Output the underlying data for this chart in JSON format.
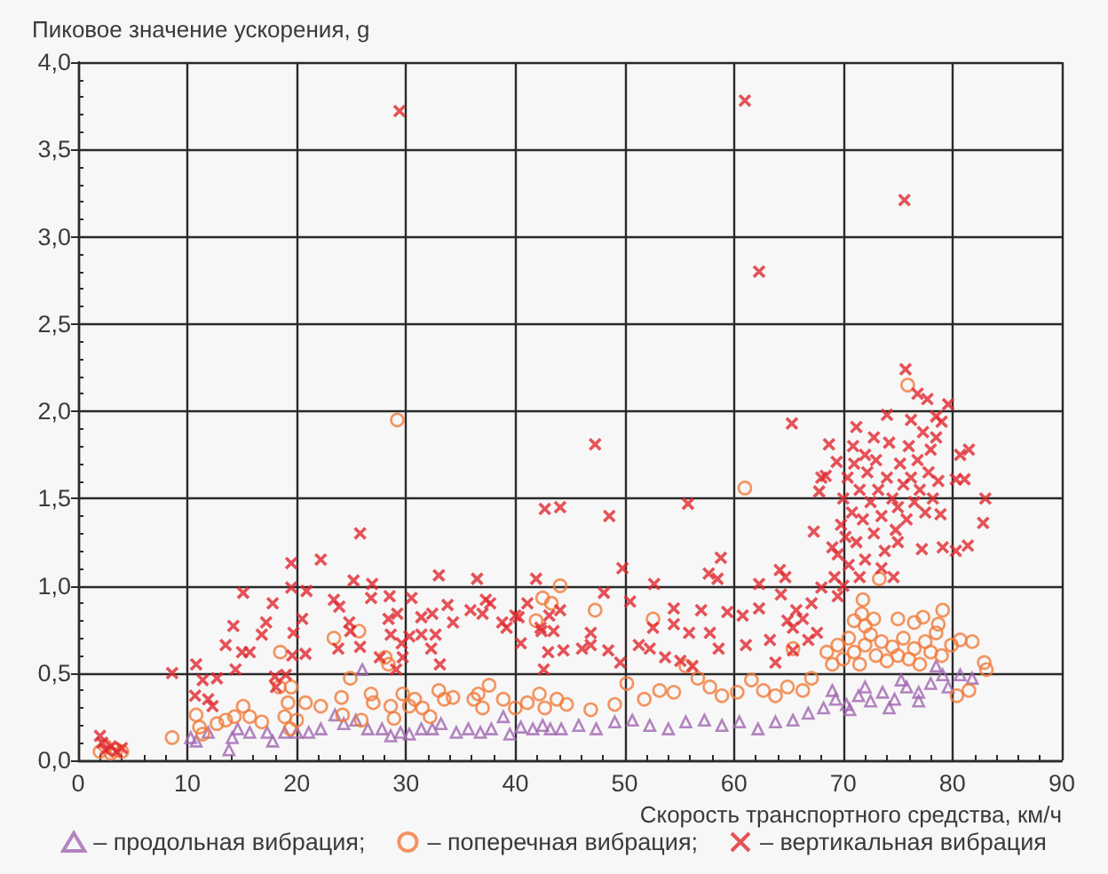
{
  "chart_data": {
    "type": "scatter",
    "xlabel": "Скорость транспортного средства, км/ч",
    "ylabel": "Пиковое значение ускорения, g",
    "xlim": [
      0,
      90
    ],
    "xticks": [
      0,
      {
        "value": 2,
        "label": null
      },
      {
        "value": 4,
        "label": null
      },
      {
        "value": 6,
        "label": null
      },
      {
        "value": 8,
        "label": null
      },
      10,
      {
        "value": 12,
        "label": null
      },
      {
        "value": 14,
        "label": null
      },
      {
        "value": 16,
        "label": null
      },
      {
        "value": 18,
        "label": null
      },
      20,
      {
        "value": 22,
        "label": null
      },
      {
        "value": 24,
        "label": null
      },
      {
        "value": 26,
        "label": null
      },
      {
        "value": 28,
        "label": null
      },
      30,
      {
        "value": 32,
        "label": null
      },
      {
        "value": 34,
        "label": null
      },
      {
        "value": 36,
        "label": null
      },
      {
        "value": 38,
        "label": null
      },
      40,
      {
        "value": 42,
        "label": null
      },
      {
        "value": 44,
        "label": null
      },
      {
        "value": 46,
        "label": null
      },
      {
        "value": 48,
        "label": null
      },
      50,
      {
        "value": 52,
        "label": null
      },
      {
        "value": 54,
        "label": null
      },
      {
        "value": 56,
        "label": null
      },
      {
        "value": 58,
        "label": null
      },
      60,
      {
        "value": 62,
        "label": null
      },
      {
        "value": 64,
        "label": null
      },
      {
        "value": 66,
        "label": null
      },
      {
        "value": 68,
        "label": null
      },
      70,
      {
        "value": 72,
        "label": null
      },
      {
        "value": 74,
        "label": null
      },
      {
        "value": 76,
        "label": null
      },
      {
        "value": 78,
        "label": null
      },
      80,
      {
        "value": 82,
        "label": null
      },
      {
        "value": 84,
        "label": null
      },
      {
        "value": 86,
        "label": null
      },
      {
        "value": 88,
        "label": null
      },
      90
    ],
    "ylim": [
      0,
      4
    ],
    "yticks": [
      {
        "value": 0,
        "label": "0,0"
      },
      {
        "value": 0.1,
        "label": null
      },
      {
        "value": 0.2,
        "label": null
      },
      {
        "value": 0.3,
        "label": null
      },
      {
        "value": 0.4,
        "label": null
      },
      {
        "value": 0.5,
        "label": "0,5"
      },
      {
        "value": 0.6,
        "label": null
      },
      {
        "value": 0.7,
        "label": null
      },
      {
        "value": 0.8,
        "label": null
      },
      {
        "value": 0.9,
        "label": null
      },
      {
        "value": 1,
        "label": "1,0"
      },
      {
        "value": 1.1,
        "label": null
      },
      {
        "value": 1.2,
        "label": null
      },
      {
        "value": 1.3,
        "label": null
      },
      {
        "value": 1.4,
        "label": null
      },
      {
        "value": 1.5,
        "label": "1,5"
      },
      {
        "value": 1.6,
        "label": null
      },
      {
        "value": 1.7,
        "label": null
      },
      {
        "value": 1.8,
        "label": null
      },
      {
        "value": 1.9,
        "label": null
      },
      {
        "value": 2,
        "label": "2,0"
      },
      {
        "value": 2.1,
        "label": null
      },
      {
        "value": 2.2,
        "label": null
      },
      {
        "value": 2.3,
        "label": null
      },
      {
        "value": 2.4,
        "label": null
      },
      {
        "value": 2.5,
        "label": "2,5"
      },
      {
        "value": 2.6,
        "label": null
      },
      {
        "value": 2.7,
        "label": null
      },
      {
        "value": 2.8,
        "label": null
      },
      {
        "value": 2.9,
        "label": null
      },
      {
        "value": 3,
        "label": "3,0"
      },
      {
        "value": 3.1,
        "label": null
      },
      {
        "value": 3.2,
        "label": null
      },
      {
        "value": 3.3,
        "label": null
      },
      {
        "value": 3.4,
        "label": null
      },
      {
        "value": 3.5,
        "label": "3,5"
      },
      {
        "value": 3.6,
        "label": null
      },
      {
        "value": 3.7,
        "label": null
      },
      {
        "value": 3.8,
        "label": null
      },
      {
        "value": 3.9,
        "label": null
      },
      {
        "value": 4,
        "label": "4,0"
      }
    ],
    "grid": true,
    "legend": "bottom",
    "series": [
      {
        "name": "– продольная вибрация;",
        "color": "#a066b0",
        "marker": "triangle",
        "x": [
          10.3,
          10.8,
          11.9,
          13.8,
          14.1,
          14.6,
          15.7,
          17.3,
          17.8,
          18.9,
          20.0,
          21.1,
          22.2,
          23.5,
          24.3,
          25.4,
          26.0,
          26.5,
          27.8,
          28.6,
          29.5,
          30.3,
          31.4,
          32.4,
          33.2,
          34.6,
          35.7,
          36.8,
          37.8,
          38.9,
          39.5,
          40.5,
          41.6,
          42.5,
          43.2,
          44.2,
          45.8,
          47.4,
          49.1,
          50.7,
          52.3,
          54.0,
          55.6,
          57.3,
          58.9,
          60.5,
          62.2,
          63.8,
          65.4,
          66.8,
          68.2,
          69.0,
          69.3,
          70.3,
          70.6,
          71.4,
          72.0,
          72.5,
          73.6,
          74.2,
          74.7,
          75.3,
          75.8,
          76.9,
          76.9,
          78.0,
          78.5,
          79.1,
          79.6,
          80.7,
          81.8
        ],
        "values": [
          0.13,
          0.11,
          0.16,
          0.06,
          0.13,
          0.18,
          0.16,
          0.16,
          0.11,
          0.16,
          0.16,
          0.16,
          0.18,
          0.26,
          0.21,
          0.23,
          0.52,
          0.18,
          0.18,
          0.14,
          0.16,
          0.15,
          0.18,
          0.18,
          0.21,
          0.16,
          0.18,
          0.16,
          0.18,
          0.25,
          0.15,
          0.19,
          0.18,
          0.2,
          0.18,
          0.18,
          0.2,
          0.18,
          0.22,
          0.23,
          0.2,
          0.18,
          0.22,
          0.23,
          0.2,
          0.22,
          0.18,
          0.22,
          0.23,
          0.27,
          0.3,
          0.4,
          0.35,
          0.32,
          0.29,
          0.37,
          0.42,
          0.34,
          0.39,
          0.3,
          0.35,
          0.46,
          0.42,
          0.39,
          0.34,
          0.44,
          0.54,
          0.49,
          0.42,
          0.49,
          0.47
        ]
      },
      {
        "name": "– поперечная вибрация;",
        "color": "#f07a3a",
        "marker": "circle",
        "x": [
          2.0,
          2.5,
          3.0,
          3.5,
          4.0,
          8.6,
          10.8,
          11.1,
          11.4,
          12.7,
          13.5,
          14.3,
          15.1,
          15.7,
          16.8,
          18.4,
          18.5,
          18.9,
          19.2,
          19.4,
          19.5,
          20.0,
          20.8,
          22.2,
          23.4,
          24.1,
          24.2,
          24.9,
          25.7,
          25.9,
          26.8,
          27.0,
          28.1,
          28.4,
          28.6,
          28.9,
          29.2,
          29.7,
          30.3,
          30.8,
          31.5,
          32.2,
          33.0,
          33.5,
          34.3,
          36.2,
          36.6,
          37.0,
          37.6,
          38.9,
          40.0,
          41.1,
          41.9,
          42.2,
          42.5,
          42.7,
          43.3,
          43.8,
          44.1,
          44.7,
          46.9,
          47.3,
          49.1,
          50.2,
          51.8,
          52.6,
          53.2,
          54.5,
          55.6,
          56.7,
          57.8,
          58.9,
          60.3,
          61.0,
          61.6,
          62.7,
          63.8,
          64.9,
          65.4,
          66.3,
          67.1,
          68.5,
          69.0,
          69.5,
          70.0,
          70.5,
          71.0,
          71.0,
          71.5,
          71.7,
          71.8,
          72.0,
          72.0,
          72.5,
          72.8,
          73.0,
          73.3,
          73.5,
          74.0,
          74.5,
          75.0,
          75.0,
          75.5,
          75.9,
          76.0,
          76.5,
          76.5,
          77.0,
          77.3,
          77.5,
          78.0,
          78.5,
          78.7,
          79.0,
          79.1,
          79.9,
          80.4,
          80.7,
          81.5,
          81.8,
          82.9,
          83.1
        ],
        "values": [
          0.05,
          0.08,
          0.04,
          0.06,
          0.05,
          0.13,
          0.26,
          0.19,
          0.15,
          0.21,
          0.23,
          0.25,
          0.31,
          0.25,
          0.22,
          0.42,
          0.62,
          0.25,
          0.33,
          0.18,
          0.42,
          0.23,
          0.33,
          0.31,
          0.7,
          0.36,
          0.26,
          0.47,
          0.74,
          0.23,
          0.38,
          0.33,
          0.59,
          0.55,
          0.31,
          0.24,
          1.95,
          0.38,
          0.31,
          0.35,
          0.3,
          0.25,
          0.4,
          0.35,
          0.36,
          0.35,
          0.38,
          0.3,
          0.43,
          0.35,
          0.3,
          0.33,
          0.8,
          0.38,
          0.93,
          0.3,
          0.9,
          0.35,
          1.0,
          0.32,
          0.29,
          0.86,
          0.32,
          0.44,
          0.35,
          0.81,
          0.4,
          0.39,
          0.54,
          0.47,
          0.42,
          0.37,
          0.39,
          1.56,
          0.46,
          0.4,
          0.37,
          0.42,
          0.64,
          0.4,
          0.47,
          0.62,
          0.55,
          0.66,
          0.58,
          0.7,
          0.62,
          0.8,
          0.55,
          0.84,
          0.92,
          0.66,
          0.77,
          0.72,
          0.81,
          0.6,
          1.04,
          0.68,
          0.57,
          0.65,
          0.6,
          0.81,
          0.7,
          2.15,
          0.58,
          0.64,
          0.79,
          0.55,
          0.82,
          0.68,
          0.62,
          0.73,
          0.78,
          0.6,
          0.86,
          0.66,
          0.37,
          0.69,
          0.4,
          0.68,
          0.56,
          0.52
        ]
      },
      {
        "name": "– вертикальная вибрация",
        "color": "#e0282e",
        "marker": "cross",
        "x": [
          2.0,
          2.2,
          2.5,
          3.0,
          3.5,
          4.0,
          8.6,
          10.7,
          10.8,
          11.4,
          11.9,
          12.3,
          12.7,
          13.5,
          14.2,
          14.4,
          15.0,
          15.1,
          15.7,
          16.8,
          17.2,
          17.8,
          18.0,
          18.1,
          19.0,
          19.5,
          19.5,
          19.6,
          19.7,
          20.5,
          20.8,
          20.9,
          22.2,
          23.4,
          23.8,
          23.9,
          24.8,
          24.9,
          25.2,
          25.8,
          25.8,
          26.8,
          26.9,
          27.6,
          28.4,
          28.5,
          28.6,
          29.1,
          29.2,
          29.4,
          29.6,
          29.7,
          30.3,
          30.5,
          31.4,
          31.4,
          32.3,
          32.4,
          32.7,
          33.0,
          33.1,
          33.8,
          34.3,
          35.9,
          36.5,
          37.0,
          37.3,
          37.7,
          38.8,
          39.2,
          40.0,
          40.3,
          40.5,
          41.1,
          41.9,
          42.3,
          42.4,
          42.6,
          42.7,
          43.0,
          43.1,
          43.5,
          44.1,
          44.1,
          44.4,
          46.1,
          46.9,
          46.9,
          47.3,
          48.1,
          48.5,
          48.6,
          49.6,
          49.8,
          50.5,
          51.3,
          52.3,
          52.6,
          52.7,
          53.7,
          54.5,
          54.5,
          55.1,
          55.8,
          55.9,
          56.2,
          57.0,
          57.7,
          57.8,
          58.5,
          58.6,
          58.8,
          59.4,
          60.8,
          61.0,
          61.1,
          62.3,
          62.3,
          62.3,
          63.3,
          63.8,
          64.2,
          64.3,
          64.7,
          64.9,
          65.3,
          65.4,
          65.4,
          65.7,
          66.3,
          66.8,
          67.1,
          67.3,
          67.6,
          67.8,
          68.0,
          68.0,
          68.4,
          68.7,
          69.0,
          69.2,
          69.4,
          69.5,
          69.5,
          69.8,
          70.0,
          70.0,
          70.2,
          70.4,
          70.5,
          70.8,
          70.9,
          71.0,
          71.2,
          71.2,
          71.5,
          71.5,
          71.8,
          72.0,
          72.0,
          72.2,
          72.5,
          72.8,
          72.8,
          73.0,
          73.2,
          73.5,
          73.5,
          73.8,
          74.0,
          74.0,
          74.2,
          74.5,
          74.6,
          74.8,
          75.0,
          75.0,
          75.2,
          75.5,
          75.6,
          75.7,
          75.8,
          76.0,
          76.2,
          76.2,
          76.5,
          76.8,
          76.8,
          77.0,
          77.2,
          77.3,
          77.5,
          77.7,
          77.8,
          78.0,
          78.2,
          78.5,
          78.5,
          78.7,
          78.9,
          79.0,
          79.1,
          79.6,
          80.3,
          80.3,
          80.7,
          81.1,
          81.4,
          81.5,
          82.8,
          83.0
        ],
        "values": [
          0.14,
          0.1,
          0.06,
          0.08,
          0.05,
          0.07,
          0.5,
          0.37,
          0.55,
          0.46,
          0.35,
          0.31,
          0.47,
          0.66,
          0.77,
          0.52,
          0.62,
          0.96,
          0.62,
          0.72,
          0.79,
          0.9,
          0.48,
          0.42,
          0.49,
          1.13,
          0.99,
          0.6,
          0.73,
          0.81,
          0.61,
          0.97,
          1.15,
          0.92,
          0.64,
          0.88,
          0.79,
          0.74,
          1.03,
          1.3,
          0.65,
          0.93,
          1.01,
          0.59,
          0.81,
          0.94,
          0.72,
          0.52,
          0.84,
          3.72,
          0.67,
          0.59,
          0.71,
          0.93,
          0.82,
          0.72,
          0.64,
          0.84,
          0.72,
          1.06,
          0.55,
          0.89,
          0.79,
          0.86,
          1.04,
          0.84,
          0.92,
          0.9,
          0.79,
          0.76,
          0.83,
          0.82,
          0.67,
          0.9,
          1.04,
          0.76,
          0.74,
          0.52,
          1.44,
          0.62,
          0.83,
          0.74,
          1.45,
          0.86,
          0.63,
          0.64,
          0.66,
          0.73,
          1.81,
          0.96,
          0.63,
          1.4,
          0.56,
          1.1,
          0.91,
          0.66,
          0.64,
          0.76,
          1.01,
          0.59,
          0.87,
          0.78,
          0.57,
          1.47,
          0.73,
          0.54,
          0.86,
          1.07,
          0.73,
          1.04,
          0.64,
          1.16,
          0.85,
          0.83,
          3.78,
          0.66,
          2.8,
          1.01,
          0.87,
          0.69,
          0.56,
          1.09,
          0.95,
          1.05,
          0.8,
          1.93,
          0.76,
          0.63,
          0.86,
          0.81,
          0.69,
          0.9,
          1.31,
          0.73,
          1.54,
          1.62,
          0.99,
          1.63,
          1.81,
          1.22,
          1.05,
          1.71,
          0.94,
          1.18,
          1.35,
          1.5,
          1.0,
          1.28,
          1.62,
          1.12,
          1.42,
          1.8,
          1.7,
          1.91,
          1.25,
          1.55,
          1.05,
          1.38,
          1.15,
          1.75,
          1.65,
          1.48,
          1.3,
          1.85,
          1.72,
          1.55,
          1.4,
          1.1,
          1.2,
          1.98,
          1.62,
          1.82,
          1.5,
          1.05,
          1.32,
          1.45,
          1.25,
          1.7,
          1.58,
          3.21,
          2.24,
          1.38,
          1.8,
          1.95,
          1.62,
          1.48,
          2.1,
          1.72,
          1.55,
          1.21,
          1.88,
          1.42,
          2.07,
          1.65,
          1.78,
          1.5,
          1.97,
          1.85,
          1.6,
          1.41,
          1.94,
          1.22,
          2.04,
          1.61,
          1.2,
          1.75,
          1.61,
          1.23,
          1.78,
          1.36,
          1.5
        ]
      }
    ]
  }
}
